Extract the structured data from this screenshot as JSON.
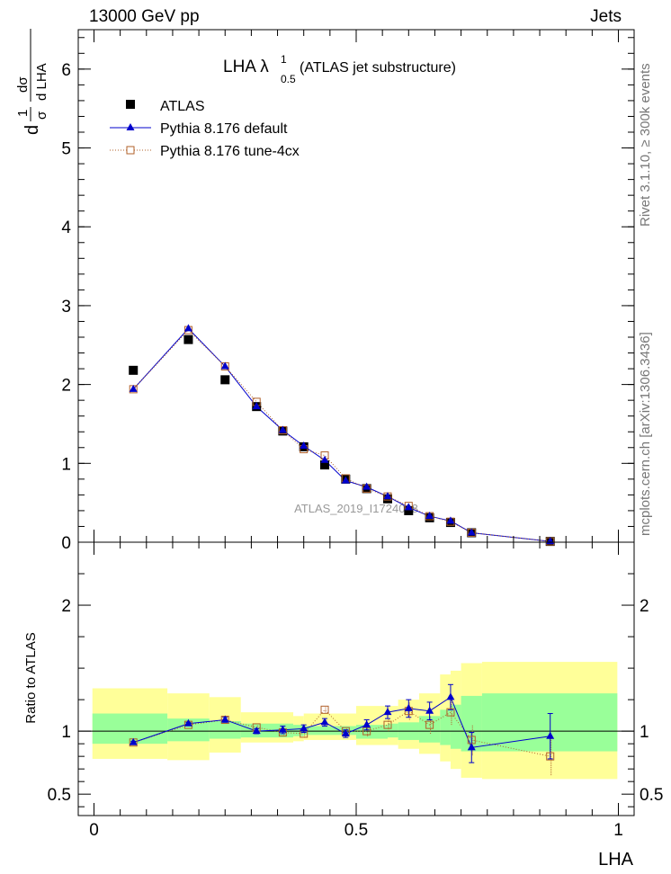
{
  "header": {
    "left": "13000 GeV pp",
    "right": "Jets"
  },
  "side_text": {
    "rivet": "Rivet 3.1.10, ≥ 300k events",
    "mcplots": "mcplots.cern.ch [arXiv:1306.3436]"
  },
  "watermark": "ATLAS_2019_I1724098",
  "title": {
    "main": "LHA λ",
    "sup": "1",
    "sub": "0.5",
    "rest": " (ATLAS jet substructure)"
  },
  "ylabel_top": {
    "part1": "1",
    "part2": "σ",
    "part3": "dσ",
    "part4": "d LHA",
    "prefix": "d"
  },
  "ylabel_bottom": "Ratio to ATLAS",
  "xlabel": "LHA",
  "legend": [
    {
      "label": "ATLAS",
      "marker": "square-filled",
      "color": "#000000"
    },
    {
      "label": "Pythia 8.176 default",
      "marker": "triangle",
      "color": "#0000cc"
    },
    {
      "label": "Pythia 8.176 tune-4cx",
      "marker": "square-open",
      "color": "#b0602a"
    }
  ],
  "chart_data": {
    "type": "scatter",
    "x": [
      0.075,
      0.18,
      0.25,
      0.31,
      0.36,
      0.4,
      0.44,
      0.48,
      0.52,
      0.56,
      0.6,
      0.64,
      0.68,
      0.72,
      0.87
    ],
    "top": {
      "xlim": [
        -0.03,
        1.03
      ],
      "ylim": [
        0,
        6.5
      ],
      "yticks": [
        0,
        1,
        2,
        3,
        4,
        5,
        6
      ],
      "ytick_labels": [
        "0",
        "1",
        "2",
        "3",
        "4",
        "5",
        "6"
      ],
      "series": [
        {
          "name": "ATLAS",
          "values": [
            2.18,
            2.57,
            2.06,
            1.72,
            1.41,
            1.21,
            0.98,
            0.8,
            0.68,
            0.55,
            0.4,
            0.31,
            0.25,
            0.12,
            0.01
          ]
        },
        {
          "name": "Pythia 8.176 default",
          "values": [
            1.94,
            2.71,
            2.23,
            1.72,
            1.42,
            1.22,
            1.04,
            0.78,
            0.7,
            0.58,
            0.44,
            0.33,
            0.27,
            0.12,
            0.01
          ]
        },
        {
          "name": "Pythia 8.176 tune-4cx",
          "values": [
            1.94,
            2.69,
            2.23,
            1.78,
            1.42,
            1.18,
            1.1,
            0.81,
            0.68,
            0.58,
            0.46,
            0.33,
            0.26,
            0.12,
            0.01
          ]
        }
      ]
    },
    "ratio": {
      "ylim": [
        0.33,
        2.5
      ],
      "yticks": [
        0.5,
        1,
        2
      ],
      "ytick_labels": [
        "0.5",
        "1",
        "2"
      ],
      "xticks": [
        0,
        0.5,
        1
      ],
      "xtick_labels": [
        "0",
        "0.5",
        "1"
      ],
      "band_edges": [
        -0.003,
        0.14,
        0.22,
        0.28,
        0.38,
        0.4,
        0.5,
        0.56,
        0.58,
        0.62,
        0.66,
        0.68,
        0.7,
        0.74,
        0.998
      ],
      "band_inner_low": [
        0.9,
        0.92,
        0.94,
        0.95,
        0.96,
        0.97,
        0.94,
        0.95,
        0.93,
        0.91,
        0.89,
        0.86,
        0.84,
        0.84
      ],
      "band_inner_high": [
        1.14,
        1.1,
        1.08,
        1.06,
        1.05,
        1.04,
        1.05,
        1.06,
        1.07,
        1.12,
        1.17,
        1.21,
        1.28,
        1.3
      ],
      "band_outer_low": [
        0.78,
        0.77,
        0.83,
        0.91,
        0.92,
        0.93,
        0.89,
        0.89,
        0.86,
        0.82,
        0.76,
        0.7,
        0.63,
        0.62
      ],
      "band_outer_high": [
        1.34,
        1.3,
        1.27,
        1.15,
        1.12,
        1.14,
        1.2,
        1.2,
        1.25,
        1.3,
        1.45,
        1.48,
        1.54,
        1.55
      ],
      "series": [
        {
          "name": "Pythia 8.176 default",
          "values": [
            0.91,
            1.06,
            1.09,
            1.0,
            1.01,
            1.02,
            1.07,
            0.98,
            1.05,
            1.15,
            1.18,
            1.16,
            1.27,
            0.87,
            0.96
          ],
          "err": [
            0.01,
            0.01,
            0.02,
            0.02,
            0.03,
            0.03,
            0.03,
            0.03,
            0.04,
            0.05,
            0.07,
            0.07,
            0.1,
            0.12,
            0.18
          ]
        },
        {
          "name": "Pythia 8.176 tune-4cx",
          "values": [
            0.91,
            1.05,
            1.09,
            1.03,
            0.99,
            0.98,
            1.17,
            1.0,
            1.0,
            1.05,
            1.16,
            1.05,
            1.15,
            0.93,
            0.8
          ],
          "err": [
            0.01,
            0.01,
            0.02,
            0.02,
            0.03,
            0.03,
            0.03,
            0.03,
            0.04,
            0.05,
            0.07,
            0.07,
            0.1,
            0.12,
            0.15
          ]
        }
      ]
    },
    "colors": {
      "atlas": "#000000",
      "default": "#0000cc",
      "tune": "#b0602a",
      "band_inner": "#99ff99",
      "band_outer": "#ffff99"
    }
  }
}
